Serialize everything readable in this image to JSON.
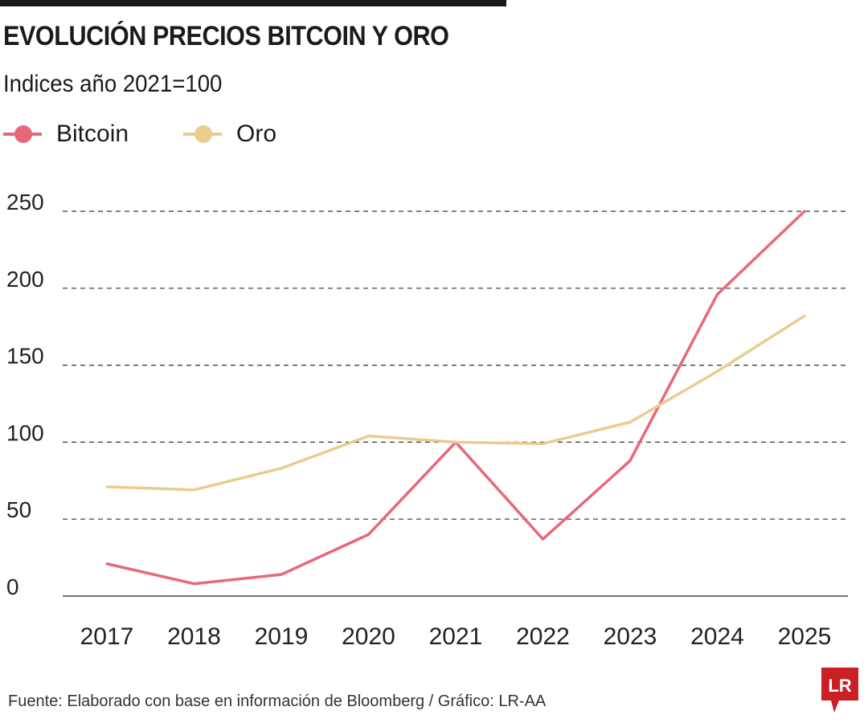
{
  "header": {
    "title": "EVOLUCIÓN PRECIOS BITCOIN Y ORO",
    "subtitle": "Indices año 2021=100"
  },
  "footer": {
    "source": "Fuente: Elaborado con base en información de Bloomberg / Gráfico: LR-AA",
    "logo_text": "LR"
  },
  "chart_data": {
    "type": "line",
    "title": "EVOLUCIÓN PRECIOS BITCOIN Y ORO",
    "subtitle": "Indices año 2021=100",
    "xlabel": "",
    "ylabel": "",
    "x": [
      "2017",
      "2018",
      "2019",
      "2020",
      "2021",
      "2022",
      "2023",
      "2024",
      "2025"
    ],
    "ylim": [
      0,
      250
    ],
    "yticks": [
      0,
      50,
      100,
      150,
      200,
      250
    ],
    "grid": "horizontal dashed",
    "legend": "top-left",
    "series": [
      {
        "name": "Bitcoin",
        "color": "#e8687a",
        "values": [
          21,
          8,
          14,
          40,
          100,
          37,
          88,
          196,
          250
        ]
      },
      {
        "name": "Oro",
        "color": "#e9cd8f",
        "values": [
          71,
          69,
          83,
          104,
          100,
          99,
          113,
          146,
          182
        ]
      }
    ]
  },
  "colors": {
    "logo": "#cc1f25"
  }
}
